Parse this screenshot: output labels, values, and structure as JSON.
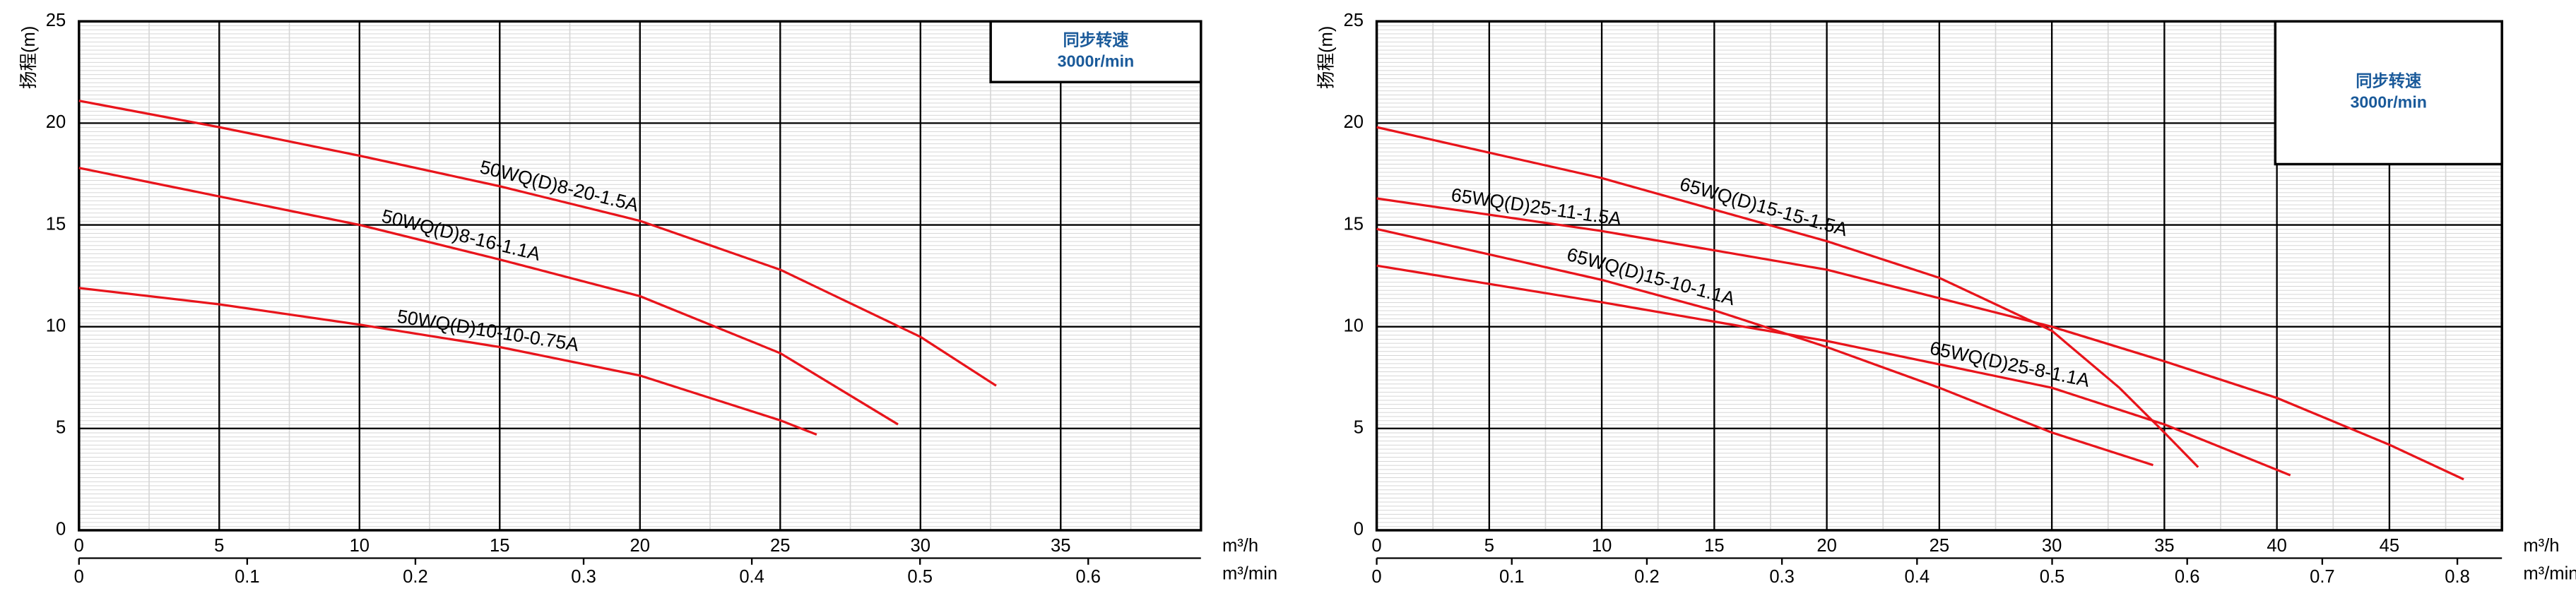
{
  "chart_data": [
    {
      "type": "line",
      "y_label": "扬程(m)",
      "x_label": "m³/h",
      "x2_label": "m³/min",
      "note_lines": [
        "同步转速",
        "3000r/min"
      ],
      "xlim": [
        0,
        40
      ],
      "xticks": [
        0,
        5,
        10,
        15,
        20,
        25,
        30,
        35
      ],
      "x2lim": [
        0,
        0.667
      ],
      "x2ticks": [
        0,
        0.1,
        0.2,
        0.3,
        0.4,
        0.5,
        0.6
      ],
      "ylim": [
        0,
        25
      ],
      "yticks": [
        0,
        5,
        10,
        15,
        20,
        25
      ],
      "grid": true,
      "series": [
        {
          "name": "50WQ(D)8-20-1.5A",
          "color": "#e8141b",
          "x": [
            0,
            5,
            10,
            15,
            20,
            25,
            30,
            32.7
          ],
          "values": [
            21.1,
            19.8,
            18.4,
            16.9,
            15.2,
            12.8,
            9.5,
            7.1
          ]
        },
        {
          "name": "50WQ(D)8-16-1.1A",
          "color": "#e8141b",
          "x": [
            0,
            5,
            10,
            15,
            20,
            25,
            29.2
          ],
          "values": [
            17.8,
            16.4,
            15.0,
            13.3,
            11.5,
            8.7,
            5.2
          ]
        },
        {
          "name": "50WQ(D)10-10-0.75A",
          "color": "#e8141b",
          "x": [
            0,
            5,
            10,
            15,
            20,
            25,
            26.3
          ],
          "values": [
            11.9,
            11.1,
            10.1,
            9.0,
            7.6,
            5.4,
            4.7
          ]
        }
      ]
    },
    {
      "type": "line",
      "y_label": "扬程(m)",
      "x_label": "m³/h",
      "x2_label": "m³/min",
      "note_lines": [
        "同步转速",
        "3000r/min"
      ],
      "xlim": [
        0,
        50
      ],
      "xticks": [
        0,
        5,
        10,
        15,
        20,
        25,
        30,
        35,
        40,
        45
      ],
      "x2lim": [
        0,
        0.833
      ],
      "x2ticks": [
        0,
        0.1,
        0.2,
        0.3,
        0.4,
        0.5,
        0.6,
        0.7,
        0.8
      ],
      "ylim": [
        0,
        25
      ],
      "yticks": [
        0,
        5,
        10,
        15,
        20,
        25
      ],
      "grid": true,
      "series": [
        {
          "name": "65WQ(D)15-15-1.5A",
          "color": "#e8141b",
          "x": [
            0,
            10,
            20,
            25,
            30,
            33,
            35,
            36.5
          ],
          "values": [
            19.8,
            17.3,
            14.2,
            12.4,
            9.8,
            7.0,
            4.8,
            3.1
          ]
        },
        {
          "name": "65WQ(D)25-11-1.5A",
          "color": "#e8141b",
          "x": [
            0,
            10,
            20,
            30,
            35,
            40,
            45,
            48.3
          ],
          "values": [
            16.3,
            14.7,
            12.8,
            10.0,
            8.3,
            6.5,
            4.2,
            2.5
          ]
        },
        {
          "name": "65WQ(D)15-10-1.1A",
          "color": "#e8141b",
          "x": [
            0,
            10,
            15,
            20,
            25,
            30,
            34.5
          ],
          "values": [
            14.8,
            12.3,
            10.8,
            9.0,
            7.0,
            4.8,
            3.2
          ]
        },
        {
          "name": "65WQ(D)25-8-1.1A",
          "color": "#e8141b",
          "x": [
            0,
            10,
            20,
            30,
            35,
            40.6
          ],
          "values": [
            13.0,
            11.2,
            9.3,
            7.0,
            5.2,
            2.7
          ]
        }
      ]
    }
  ]
}
